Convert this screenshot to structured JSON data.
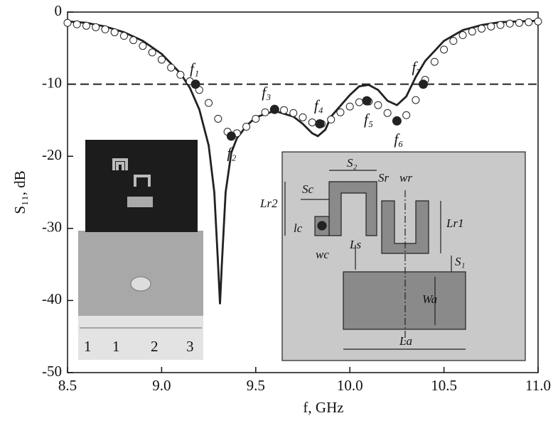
{
  "chart_data": {
    "type": "line",
    "xlabel": "f, GHz",
    "ylabel": "S₁₁, dB",
    "xlim": [
      8.5,
      11.0
    ],
    "ylim": [
      -50,
      0
    ],
    "xticks": [
      8.5,
      {
        "value": 9,
        "label": "9.0"
      },
      9.5,
      {
        "value": 10,
        "label": "10.0"
      },
      10.5,
      {
        "value": 11,
        "label": "11.0"
      }
    ],
    "yticks": [
      -50,
      -40,
      -30,
      -20,
      -10,
      0
    ],
    "reference_line": -10,
    "series": [
      {
        "color": "#222222",
        "marker": "none",
        "x": [
          8.5,
          8.6,
          8.7,
          8.8,
          8.9,
          9.0,
          9.1,
          9.15,
          9.2,
          9.25,
          9.28,
          9.3,
          9.31,
          9.32,
          9.34,
          9.37,
          9.4,
          9.45,
          9.5,
          9.6,
          9.7,
          9.75,
          9.8,
          9.83,
          9.87,
          9.9,
          10.0,
          10.05,
          10.1,
          10.15,
          10.2,
          10.25,
          10.3,
          10.35,
          10.4,
          10.5,
          10.6,
          10.7,
          10.8,
          10.9,
          11.0
        ],
        "values": [
          -1.3,
          -1.5,
          -2.0,
          -2.8,
          -4.0,
          -5.8,
          -8.5,
          -10.5,
          -13.5,
          -18.5,
          -25,
          -35,
          -40.5,
          -35,
          -25,
          -19.5,
          -17.5,
          -15.8,
          -14.6,
          -13.7,
          -14.5,
          -15.5,
          -16.8,
          -17.2,
          -16.3,
          -14.5,
          -11.5,
          -10.3,
          -10.1,
          -10.8,
          -12.3,
          -12.9,
          -11.7,
          -9.0,
          -6.8,
          -4.0,
          -2.5,
          -1.8,
          -1.4,
          -1.3,
          -1.2
        ]
      },
      {
        "color": "#222222",
        "marker": "open-circle",
        "x": [
          8.5,
          8.55,
          8.6,
          8.65,
          8.7,
          8.75,
          8.8,
          8.85,
          8.9,
          8.95,
          9.0,
          9.05,
          9.1,
          9.15,
          9.2,
          9.25,
          9.3,
          9.35,
          9.4,
          9.45,
          9.5,
          9.55,
          9.6,
          9.65,
          9.7,
          9.75,
          9.8,
          9.85,
          9.9,
          9.95,
          10.0,
          10.05,
          10.1,
          10.15,
          10.2,
          10.25,
          10.3,
          10.35,
          10.4,
          10.45,
          10.5,
          10.55,
          10.6,
          10.65,
          10.7,
          10.75,
          10.8,
          10.85,
          10.9,
          10.95,
          11.0
        ],
        "values": [
          -1.5,
          -1.7,
          -1.9,
          -2.1,
          -2.4,
          -2.8,
          -3.3,
          -3.9,
          -4.7,
          -5.6,
          -6.6,
          -7.7,
          -8.7,
          -9.6,
          -10.8,
          -12.6,
          -14.8,
          -16.6,
          -16.8,
          -15.9,
          -14.8,
          -13.9,
          -13.5,
          -13.6,
          -14.0,
          -14.6,
          -15.3,
          -15.5,
          -14.9,
          -13.9,
          -13.1,
          -12.5,
          -12.4,
          -12.9,
          -14.0,
          -15.0,
          -14.3,
          -12.2,
          -9.4,
          -6.9,
          -5.2,
          -4.0,
          -3.2,
          -2.7,
          -2.3,
          -2.0,
          -1.8,
          -1.6,
          -1.5,
          -1.4,
          -1.3
        ]
      }
    ],
    "annotations": [
      {
        "text": "f₁",
        "x": 9.18,
        "y": -10
      },
      {
        "text": "f₂",
        "x": 9.37,
        "y": -17.2
      },
      {
        "text": "f₃",
        "x": 9.6,
        "y": -13.5
      },
      {
        "text": "f₄",
        "x": 9.84,
        "y": -15.5
      },
      {
        "text": "f₅",
        "x": 10.09,
        "y": -12.3
      },
      {
        "text": "f₆",
        "x": 10.25,
        "y": -15.1
      },
      {
        "text": "f₇",
        "x": 10.39,
        "y": -10
      }
    ],
    "inset_labels": [
      "S₂",
      "Sc",
      "Sr",
      "wr",
      "Lr2",
      "lc",
      "wc",
      "Ls",
      "Lr1",
      "S₁",
      "Wa",
      "La"
    ],
    "ruler_labels": [
      "1",
      "1",
      "2",
      "3"
    ]
  }
}
